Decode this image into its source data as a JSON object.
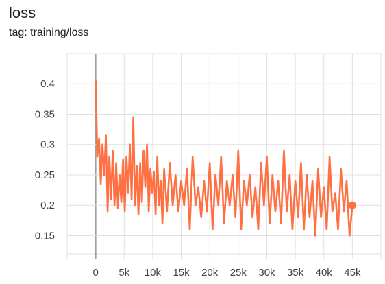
{
  "title": "loss",
  "subtitle": "tag: training/loss",
  "colors": {
    "series": "#ff7043",
    "grid": "#e0e0e0",
    "zero_axis": "#9e9e9e",
    "text": "#424242"
  },
  "chart_data": {
    "type": "line",
    "title": "loss",
    "subtitle": "tag: training/loss",
    "xlabel": "",
    "ylabel": "",
    "xlim": [
      -5000,
      50000
    ],
    "ylim": [
      0.12,
      0.45
    ],
    "grid": true,
    "legend": "none",
    "x_ticks": [
      0,
      5000,
      10000,
      15000,
      20000,
      25000,
      30000,
      35000,
      40000,
      45000
    ],
    "x_tick_labels": [
      "0",
      "5k",
      "10k",
      "15k",
      "20k",
      "25k",
      "30k",
      "35k",
      "40k",
      "45k"
    ],
    "y_ticks": [
      0.15,
      0.2,
      0.25,
      0.3,
      0.35,
      0.4
    ],
    "y_tick_labels": [
      "0.15",
      "0.2",
      "0.25",
      "0.3",
      "0.35",
      "0.4"
    ],
    "series": [
      {
        "x": [
          0,
          300,
          600,
          900,
          1200,
          1500,
          1800,
          2100,
          2400,
          2700,
          3000,
          3300,
          3600,
          3900,
          4200,
          4500,
          4800,
          5100,
          5400,
          5700,
          6000,
          6300,
          6600,
          6900,
          7200,
          7500,
          7800,
          8100,
          8400,
          8700,
          9000,
          9300,
          9600,
          9900,
          10200,
          10500,
          10800,
          11100,
          11400,
          11700,
          12000,
          12500,
          13000,
          13500,
          14000,
          14500,
          15000,
          15500,
          16000,
          16500,
          17000,
          17500,
          18000,
          18500,
          19000,
          19500,
          20000,
          20500,
          21000,
          21500,
          22000,
          22500,
          23000,
          23500,
          24000,
          24500,
          25000,
          25500,
          26000,
          26500,
          27000,
          27500,
          28000,
          28500,
          29000,
          29500,
          30000,
          30500,
          31000,
          31500,
          32000,
          32500,
          33000,
          33500,
          34000,
          34500,
          35000,
          35500,
          36000,
          36500,
          37000,
          37500,
          38000,
          38500,
          39000,
          39500,
          40000,
          40500,
          41000,
          41500,
          42000,
          42500,
          43000,
          43500,
          44000,
          44500,
          45000
        ],
        "y": [
          0.405,
          0.28,
          0.31,
          0.235,
          0.3,
          0.25,
          0.315,
          0.19,
          0.28,
          0.21,
          0.29,
          0.2,
          0.27,
          0.195,
          0.25,
          0.205,
          0.275,
          0.19,
          0.28,
          0.22,
          0.3,
          0.21,
          0.345,
          0.2,
          0.265,
          0.185,
          0.27,
          0.205,
          0.29,
          0.23,
          0.3,
          0.19,
          0.26,
          0.22,
          0.255,
          0.185,
          0.28,
          0.2,
          0.24,
          0.17,
          0.26,
          0.19,
          0.27,
          0.2,
          0.25,
          0.19,
          0.24,
          0.2,
          0.26,
          0.16,
          0.28,
          0.2,
          0.23,
          0.18,
          0.24,
          0.19,
          0.27,
          0.16,
          0.25,
          0.2,
          0.28,
          0.17,
          0.24,
          0.2,
          0.25,
          0.18,
          0.29,
          0.16,
          0.24,
          0.2,
          0.25,
          0.18,
          0.23,
          0.16,
          0.27,
          0.2,
          0.28,
          0.17,
          0.25,
          0.19,
          0.24,
          0.17,
          0.29,
          0.19,
          0.25,
          0.16,
          0.24,
          0.18,
          0.27,
          0.16,
          0.25,
          0.18,
          0.24,
          0.15,
          0.26,
          0.18,
          0.23,
          0.16,
          0.28,
          0.19,
          0.22,
          0.16,
          0.26,
          0.19,
          0.24,
          0.15,
          0.2
        ]
      }
    ]
  }
}
